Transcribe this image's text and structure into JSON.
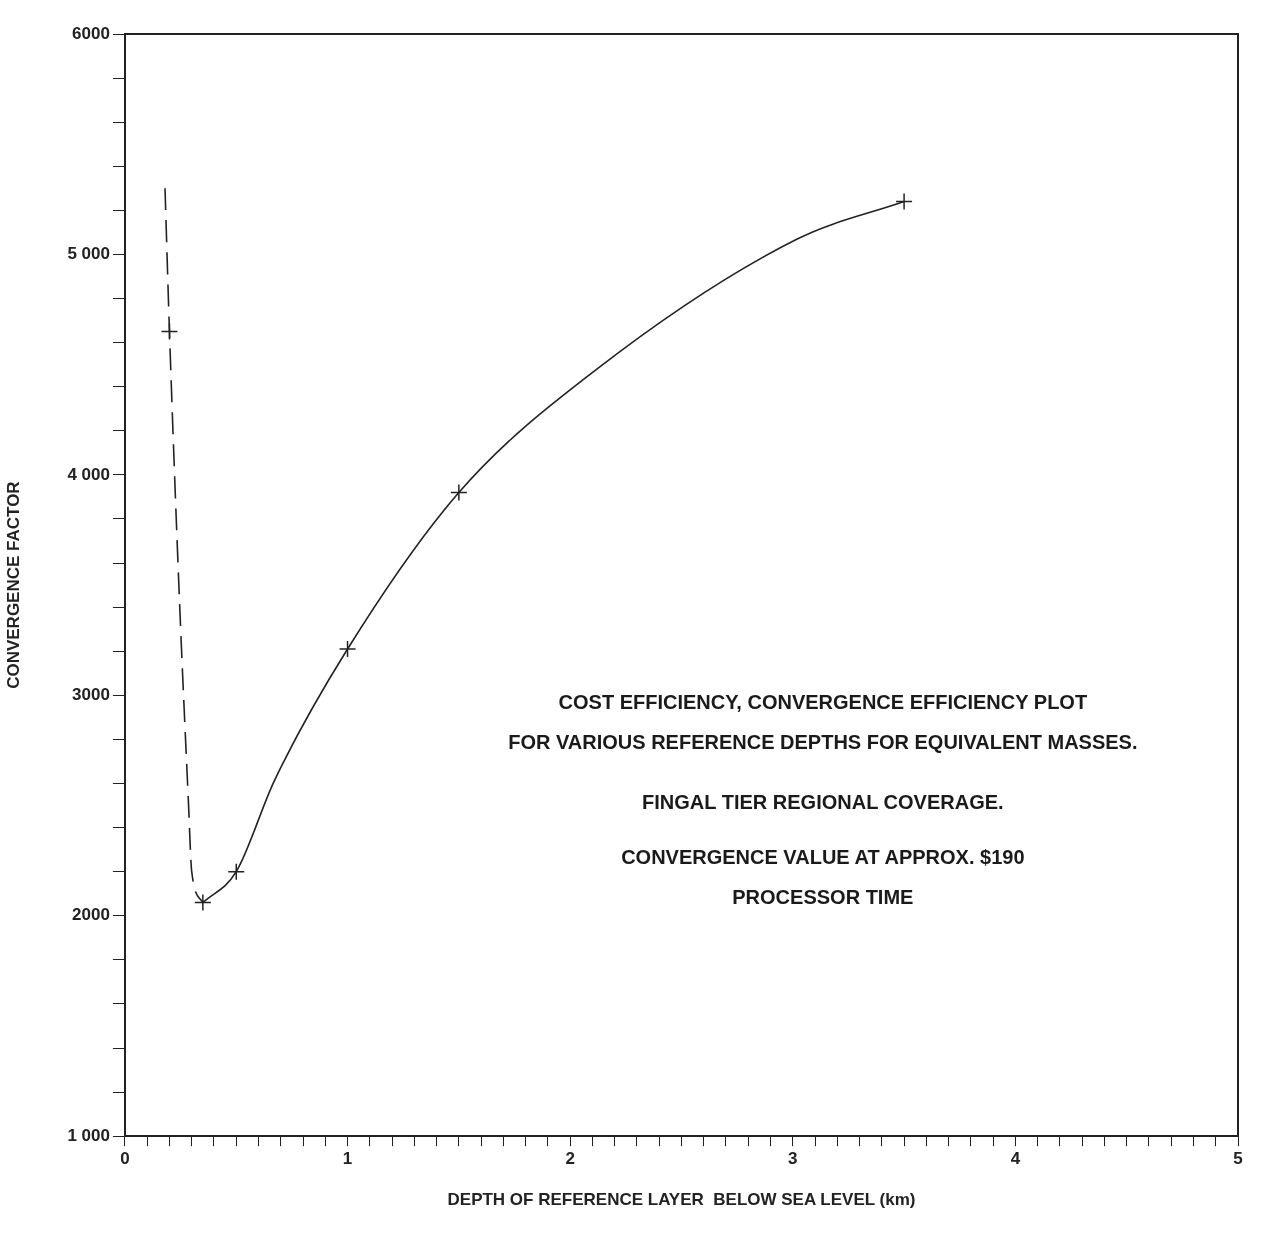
{
  "chart_data": {
    "type": "line",
    "xlabel": "DEPTH OF REFERENCE LAYER  BELOW SEA LEVEL (km)",
    "ylabel": "CONVERGENCE FACTOR",
    "xlim": [
      0,
      5
    ],
    "ylim": [
      1000,
      6000
    ],
    "xticks": [
      0,
      {
        "value": 0.1,
        "label": null
      },
      {
        "value": 0.2,
        "label": null
      },
      {
        "value": 0.3,
        "label": null
      },
      {
        "value": 0.4,
        "label": null
      },
      {
        "value": 0.5,
        "label": null
      },
      {
        "value": 0.6,
        "label": null
      },
      {
        "value": 0.7,
        "label": null
      },
      {
        "value": 0.8,
        "label": null
      },
      {
        "value": 0.9,
        "label": null
      },
      1,
      {
        "value": 1.1,
        "label": null
      },
      {
        "value": 1.2,
        "label": null
      },
      {
        "value": 1.3,
        "label": null
      },
      {
        "value": 1.4,
        "label": null
      },
      {
        "value": 1.5,
        "label": null
      },
      {
        "value": 1.6,
        "label": null
      },
      {
        "value": 1.7,
        "label": null
      },
      {
        "value": 1.8,
        "label": null
      },
      {
        "value": 1.9,
        "label": null
      },
      2,
      {
        "value": 2.1,
        "label": null
      },
      {
        "value": 2.2,
        "label": null
      },
      {
        "value": 2.3,
        "label": null
      },
      {
        "value": 2.4,
        "label": null
      },
      {
        "value": 2.5,
        "label": null
      },
      {
        "value": 2.6,
        "label": null
      },
      {
        "value": 2.7,
        "label": null
      },
      {
        "value": 2.8,
        "label": null
      },
      {
        "value": 2.9,
        "label": null
      },
      3,
      {
        "value": 3.1,
        "label": null
      },
      {
        "value": 3.2,
        "label": null
      },
      {
        "value": 3.3,
        "label": null
      },
      {
        "value": 3.4,
        "label": null
      },
      {
        "value": 3.5,
        "label": null
      },
      {
        "value": 3.6,
        "label": null
      },
      {
        "value": 3.7,
        "label": null
      },
      {
        "value": 3.8,
        "label": null
      },
      {
        "value": 3.9,
        "label": null
      },
      4,
      {
        "value": 4.1,
        "label": null
      },
      {
        "value": 4.2,
        "label": null
      },
      {
        "value": 4.3,
        "label": null
      },
      {
        "value": 4.4,
        "label": null
      },
      {
        "value": 4.5,
        "label": null
      },
      {
        "value": 4.6,
        "label": null
      },
      {
        "value": 4.7,
        "label": null
      },
      {
        "value": 4.8,
        "label": null
      },
      {
        "value": 4.9,
        "label": null
      },
      5
    ],
    "yticks": [
      {
        "value": 1000,
        "label": "1 000"
      },
      {
        "value": 1200,
        "label": null
      },
      {
        "value": 1400,
        "label": null
      },
      {
        "value": 1600,
        "label": null
      },
      {
        "value": 1800,
        "label": null
      },
      2000,
      {
        "value": 2200,
        "label": null
      },
      {
        "value": 2400,
        "label": null
      },
      {
        "value": 2600,
        "label": null
      },
      {
        "value": 2800,
        "label": null
      },
      3000,
      {
        "value": 3200,
        "label": null
      },
      {
        "value": 3400,
        "label": null
      },
      {
        "value": 3600,
        "label": null
      },
      {
        "value": 3800,
        "label": null
      },
      {
        "value": 4000,
        "label": "4 000"
      },
      {
        "value": 4200,
        "label": null
      },
      {
        "value": 4400,
        "label": null
      },
      {
        "value": 4600,
        "label": null
      },
      {
        "value": 4800,
        "label": null
      },
      {
        "value": 5000,
        "label": "5 000"
      },
      {
        "value": 5200,
        "label": null
      },
      {
        "value": 5400,
        "label": null
      },
      {
        "value": 5600,
        "label": null
      },
      {
        "value": 5800,
        "label": null
      },
      6000
    ],
    "grid": false,
    "legend": false,
    "series": [
      {
        "type": "line",
        "color": "#222222",
        "line_style": "dashed",
        "marker": "none",
        "x": [
          0.18,
          0.2,
          0.245,
          0.285,
          0.3,
          0.35
        ],
        "values": [
          5300,
          4650,
          3430,
          2520,
          2200,
          2060
        ]
      },
      {
        "type": "line",
        "color": "#222222",
        "line_style": "solid",
        "marker": "none",
        "x": [
          0.35,
          0.5,
          0.67,
          1.0,
          1.5,
          2.12,
          3.02,
          3.5
        ],
        "values": [
          2060,
          2200,
          2610,
          3210,
          3920,
          4480,
          5070,
          5240
        ]
      },
      {
        "type": "scatter",
        "color": "#222222",
        "marker": "cross",
        "x": [
          0.2,
          0.35,
          0.5,
          1.0,
          1.5,
          3.5
        ],
        "values": [
          4650,
          2060,
          2200,
          3210,
          3920,
          5240
        ]
      }
    ],
    "annotations": [
      "COST EFFICIENCY, CONVERGENCE EFFICIENCY PLOT",
      "FOR VARIOUS REFERENCE DEPTHS FOR EQUIVALENT MASSES.",
      "FINGAL TIER REGIONAL COVERAGE.",
      "CONVERGENCE VALUE AT APPROX. $190",
      "PROCESSOR TIME"
    ]
  }
}
